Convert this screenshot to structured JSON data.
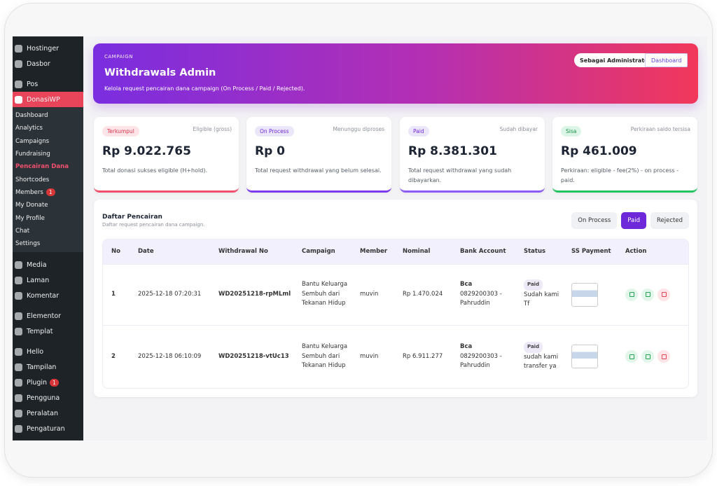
{
  "sidebar": {
    "menu": [
      [
        {
          "label": "Hostinger"
        },
        {
          "label": "Dasbor"
        }
      ],
      [
        {
          "label": "Pos"
        },
        {
          "label": "DonasiWP",
          "active": true,
          "submenu": [
            {
              "label": "Dashboard"
            },
            {
              "label": "Analytics"
            },
            {
              "label": "Campaigns"
            },
            {
              "label": "Fundraising"
            },
            {
              "label": "Pencairan Dana",
              "active": true
            },
            {
              "label": "Shortcodes"
            },
            {
              "label": "Members",
              "badge": 1
            },
            {
              "label": "My Donate"
            },
            {
              "label": "My Profile"
            },
            {
              "label": "Chat"
            },
            {
              "label": "Settings"
            }
          ]
        }
      ],
      [
        {
          "label": "Media"
        },
        {
          "label": "Laman"
        },
        {
          "label": "Komentar"
        }
      ],
      [
        {
          "label": "Elementor"
        },
        {
          "label": "Templat"
        }
      ],
      [
        {
          "label": "Hello"
        },
        {
          "label": "Tampilan"
        },
        {
          "label": "Plugin",
          "badge": 1
        },
        {
          "label": "Pengguna"
        },
        {
          "label": "Peralatan"
        },
        {
          "label": "Pengaturan"
        }
      ]
    ]
  },
  "header": {
    "eyebrow": "CAMPAIGN",
    "title": "Withdrawals Admin",
    "description": "Kelola request pencairan dana campaign (On Process / Paid / Rejected).",
    "role_button": "Sebagai Administrator",
    "dashboard_button": "Dashboard"
  },
  "cards": [
    {
      "badge": "Terkumpul",
      "note": "Eligible (gross)",
      "amount": "Rp 9.022.765",
      "description": "Total donasi sukses eligible (H+hold)."
    },
    {
      "badge": "On Process",
      "note": "Menunggu diproses",
      "amount": "Rp 0",
      "description": "Total request withdrawal yang belum selesai."
    },
    {
      "badge": "Paid",
      "note": "Sudah dibayar",
      "amount": "Rp 8.381.301",
      "description": "Total request withdrawal yang sudah dibayarkan."
    },
    {
      "badge": "Sisa",
      "note": "Perkiraan saldo tersisa",
      "amount": "Rp 461.009",
      "description": "Perkiraan: eligible - fee(2%) - on process - paid."
    }
  ],
  "list": {
    "title": "Daftar Pencairan",
    "subtitle": "Daftar request pencairan dana campaign.",
    "filters": [
      {
        "label": "On Process"
      },
      {
        "label": "Paid",
        "active": true
      },
      {
        "label": "Rejected"
      }
    ],
    "table": {
      "columns": [
        "No",
        "Date",
        "Withdrawal No",
        "Campaign",
        "Member",
        "Nominal",
        "Bank Account",
        "Status",
        "SS Payment",
        "Action"
      ],
      "rows": [
        {
          "no": 1,
          "date": "2025-12-18 07:20:31",
          "withdrawal_no": "WD20251218-rpMLml",
          "campaign": "Bantu Keluarga Sembuh dari Tekanan Hidup",
          "member": "muvin",
          "nominal": "Rp 1.470.024",
          "bank_name": "Bca",
          "bank_account": "0829200303 - Pahruddin",
          "status": "Paid",
          "status_note": "Sudah kami Tf"
        },
        {
          "no": 2,
          "date": "2025-12-18 06:10:09",
          "withdrawal_no": "WD20251218-vtUc13",
          "campaign": "Bantu Keluarga Sembuh dari Tekanan Hidup",
          "member": "muvin",
          "nominal": "Rp 6.911.277",
          "bank_name": "Bca",
          "bank_account": "0829200303 - Pahruddin",
          "status": "Paid",
          "status_note": "sudah kami transfer ya"
        }
      ]
    }
  }
}
